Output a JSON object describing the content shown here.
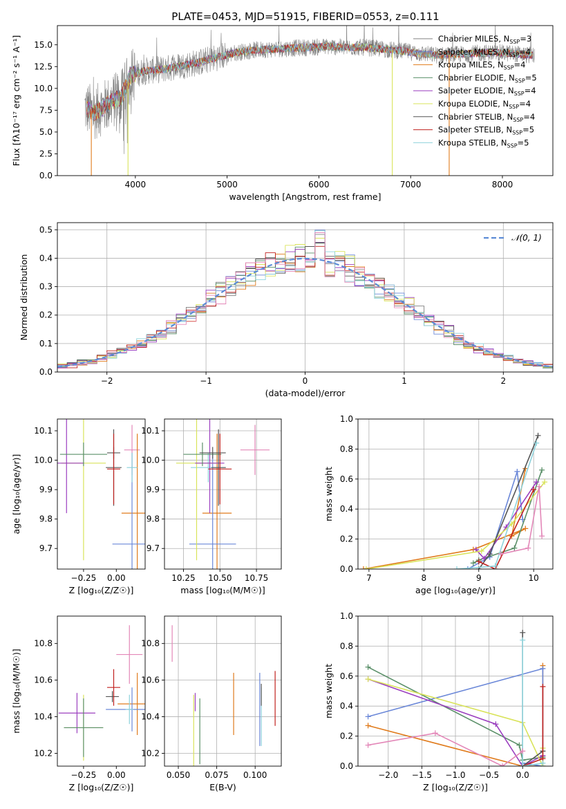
{
  "figure": {
    "title": "PLATE=0453, MJD=51915, FIBERID=0553, z=0.111"
  },
  "palette": {
    "Chabrier MILES": "#6a87d8",
    "Salpeter MILES": "#e8901f",
    "Kroupa MILES": "#e07b1c",
    "Chabrier ELODIE": "#5a8f68",
    "Salpeter ELODIE": "#9b3fbf",
    "Kroupa ELODIE": "#d9e35a",
    "Chabrier STELIB": "#555555",
    "Salpeter STELIB": "#c0201e",
    "Kroupa STELIB": "#8ed3dc",
    "Pink": "#e387b8",
    "Gray": "#808080",
    "Dashed": "#5b8bd6"
  },
  "chart_data": [
    {
      "id": "spectrum",
      "type": "line",
      "xlabel": "wavelength [Angstrom, rest frame]",
      "ylabel": "Flux [fλ10⁻¹⁷ erg cm⁻² s⁻¹ A⁻¹]",
      "xlim": [
        3150,
        8550
      ],
      "ylim": [
        0,
        17.2
      ],
      "xticks": [
        4000,
        5000,
        6000,
        7000,
        8000
      ],
      "yticks": [
        0.0,
        2.5,
        5.0,
        7.5,
        10.0,
        12.5,
        15.0
      ],
      "grid": false,
      "legend_position": "top-right",
      "legend": [
        {
          "label": "Chabrier MILES, N",
          "sub": "SSP",
          "suffix": "=3",
          "color": "#808080"
        },
        {
          "label": "Salpeter MILES, N",
          "sub": "SSP",
          "suffix": "=4",
          "color": "#6a87d8"
        },
        {
          "label": "Kroupa MILES, N",
          "sub": "SSP",
          "suffix": "=4",
          "color": "#e07b1c"
        },
        {
          "label": "Chabrier ELODIE, N",
          "sub": "SSP",
          "suffix": "=5",
          "color": "#5a8f68"
        },
        {
          "label": "Salpeter ELODIE, N",
          "sub": "SSP",
          "suffix": "=4",
          "color": "#9b3fbf"
        },
        {
          "label": "Kroupa ELODIE, N",
          "sub": "SSP",
          "suffix": "=4",
          "color": "#d9e35a"
        },
        {
          "label": "Chabrier STELIB, N",
          "sub": "SSP",
          "suffix": "=4",
          "color": "#555555"
        },
        {
          "label": "Salpeter STELIB, N",
          "sub": "SSP",
          "suffix": "=5",
          "color": "#c0201e"
        },
        {
          "label": "Kroupa STELIB, N",
          "sub": "SSP",
          "suffix": "=5",
          "color": "#8ed3dc"
        }
      ],
      "continuum": [
        [
          3450,
          7.8
        ],
        [
          3550,
          7.2
        ],
        [
          3650,
          7.8
        ],
        [
          3750,
          8.5
        ],
        [
          3850,
          9.0
        ],
        [
          3950,
          11.5
        ],
        [
          4100,
          12.0
        ],
        [
          4300,
          12.2
        ],
        [
          4500,
          12.6
        ],
        [
          4700,
          13.0
        ],
        [
          4900,
          13.6
        ],
        [
          5100,
          14.1
        ],
        [
          5300,
          14.4
        ],
        [
          5500,
          14.5
        ],
        [
          5700,
          14.6
        ],
        [
          5900,
          14.7
        ],
        [
          6100,
          14.8
        ],
        [
          6300,
          14.7
        ],
        [
          6500,
          14.7
        ],
        [
          6700,
          14.5
        ],
        [
          6900,
          14.3
        ],
        [
          7100,
          14.0
        ],
        [
          7300,
          13.8
        ],
        [
          7500,
          13.9
        ],
        [
          7700,
          14.0
        ],
        [
          7900,
          14.1
        ],
        [
          8100,
          14.0
        ],
        [
          8300,
          13.8
        ]
      ],
      "observed_range": [
        3450,
        8350
      ],
      "model_dropouts": [
        {
          "x": 3520,
          "color": "#e07b1c",
          "model": "Kroupa MILES"
        },
        {
          "x": 3920,
          "color": "#d9e35a",
          "model": "Kroupa ELODIE"
        },
        {
          "x": 6800,
          "color": "#d9e35a",
          "model": "Kroupa ELODIE"
        },
        {
          "x": 7420,
          "color": "#e07b1c",
          "model": "Kroupa MILES"
        }
      ]
    },
    {
      "id": "residuals",
      "type": "step",
      "xlabel": "(data-model)/error",
      "ylabel": "Normed distribution",
      "xlim": [
        -2.5,
        2.5
      ],
      "ylim": [
        0,
        0.525
      ],
      "xticks": [
        -2,
        -1,
        0,
        1,
        2
      ],
      "yticks": [
        0.0,
        0.1,
        0.2,
        0.3,
        0.4,
        0.5
      ],
      "grid": true,
      "legend_position": "top-right",
      "legend": [
        {
          "label": "𝒩(0, 1)",
          "style": "dashed",
          "color": "#5b8bd6"
        }
      ],
      "bin_width": 0.1,
      "series_colors": [
        "#808080",
        "#6a87d8",
        "#e07b1c",
        "#5a8f68",
        "#9b3fbf",
        "#d9e35a",
        "#555555",
        "#c0201e",
        "#8ed3dc",
        "#e387b8"
      ]
    },
    {
      "id": "age-vs-Z",
      "type": "errorbar",
      "xlabel": "Z [log₁₀(Z/Z☉)]",
      "ylabel": "age  [log₁₀(age/yr)]",
      "xlim": [
        -0.45,
        0.22
      ],
      "ylim": [
        9.63,
        10.14
      ],
      "xticks": [
        -0.25,
        0.0
      ],
      "xticklabels": [
        "−0.25",
        "0.00"
      ],
      "yticks": [
        9.7,
        9.8,
        9.9,
        10.0,
        10.1
      ],
      "grid": false,
      "points": [
        {
          "x": 0.12,
          "y": 10.035,
          "xerr": 0.06,
          "yerr": 0.085,
          "color": "#e387b8"
        },
        {
          "x": 0.16,
          "y": 9.82,
          "xerr": 0.12,
          "yerr": 0.27,
          "color": "#e07b1c"
        },
        {
          "x": 0.12,
          "y": 9.715,
          "xerr": 0.15,
          "yerr": 0.31,
          "color": "#6a87d8"
        },
        {
          "x": 0.12,
          "y": 9.975,
          "xerr": 0.04,
          "yerr": 0.05,
          "color": "#8ed3dc"
        },
        {
          "x": -0.25,
          "y": 9.99,
          "xerr": 0.17,
          "yerr": 0.33,
          "color": "#d9e35a"
        },
        {
          "x": -0.38,
          "y": 9.99,
          "xerr": 0.13,
          "yerr": 0.17,
          "color": "#9b3fbf"
        },
        {
          "x": -0.25,
          "y": 10.02,
          "xerr": 0.18,
          "yerr": 0.04,
          "color": "#5a8f68"
        },
        {
          "x": -0.02,
          "y": 10.025,
          "xerr": 0.05,
          "yerr": 0.02,
          "color": "#555555"
        },
        {
          "x": -0.02,
          "y": 9.975,
          "xerr": 0.06,
          "yerr": 0.13,
          "color": "#555555"
        },
        {
          "x": -0.02,
          "y": 9.97,
          "xerr": 0.05,
          "yerr": 0.12,
          "color": "#c0201e"
        }
      ]
    },
    {
      "id": "age-vs-mass",
      "type": "errorbar",
      "xlabel": "mass [log₁₀(M/M☉)]",
      "ylabel": "",
      "xlim": [
        10.12,
        10.92
      ],
      "ylim": [
        9.63,
        10.14
      ],
      "xticks": [
        10.25,
        10.5,
        10.75
      ],
      "xticklabels": [
        "10.25",
        "10.50",
        "10.75"
      ],
      "yticks": [
        9.7,
        9.8,
        9.9,
        10.0,
        10.1
      ],
      "grid": true,
      "points": [
        {
          "x": 10.74,
          "y": 10.035,
          "xerr": 0.1,
          "yerr": 0.085,
          "color": "#e387b8"
        },
        {
          "x": 10.48,
          "y": 9.82,
          "xerr": 0.1,
          "yerr": 0.27,
          "color": "#e07b1c"
        },
        {
          "x": 10.45,
          "y": 9.715,
          "xerr": 0.16,
          "yerr": 0.31,
          "color": "#6a87d8"
        },
        {
          "x": 10.42,
          "y": 9.975,
          "xerr": 0.12,
          "yerr": 0.05,
          "color": "#8ed3dc"
        },
        {
          "x": 10.34,
          "y": 9.99,
          "xerr": 0.14,
          "yerr": 0.33,
          "color": "#d9e35a"
        },
        {
          "x": 10.43,
          "y": 9.99,
          "xerr": 0.1,
          "yerr": 0.17,
          "color": "#9b3fbf"
        },
        {
          "x": 10.38,
          "y": 10.02,
          "xerr": 0.13,
          "yerr": 0.04,
          "color": "#5a8f68"
        },
        {
          "x": 10.45,
          "y": 10.025,
          "xerr": 0.09,
          "yerr": 0.02,
          "color": "#555555"
        },
        {
          "x": 10.49,
          "y": 9.975,
          "xerr": 0.05,
          "yerr": 0.13,
          "color": "#555555"
        },
        {
          "x": 10.5,
          "y": 9.97,
          "xerr": 0.08,
          "yerr": 0.12,
          "color": "#c0201e"
        }
      ]
    },
    {
      "id": "massweight-vs-age",
      "type": "line",
      "xlabel": "age  [log₁₀(age/yr)]",
      "ylabel": "mass weight",
      "xlim": [
        6.8,
        10.35
      ],
      "ylim": [
        0,
        1
      ],
      "xticks": [
        7,
        8,
        9,
        10
      ],
      "yticks": [
        0.0,
        0.2,
        0.4,
        0.6,
        0.8,
        1.0
      ],
      "grid": true,
      "series": [
        {
          "color": "#e07b1c",
          "x": [
            6.9,
            8.9,
            9.85,
            9.6,
            9.85
          ],
          "y": [
            0.0,
            0.13,
            0.27,
            0.22,
            0.67
          ]
        },
        {
          "color": "#6a87d8",
          "x": [
            8.8,
            9.2,
            9.7,
            9.8
          ],
          "y": [
            0.0,
            0.08,
            0.65,
            0.33
          ]
        },
        {
          "color": "#5a8f68",
          "x": [
            8.9,
            9.0,
            9.65,
            10.15
          ],
          "y": [
            0.04,
            0.06,
            0.14,
            0.66
          ]
        },
        {
          "color": "#9b3fbf",
          "x": [
            8.95,
            9.1,
            9.5,
            10.05
          ],
          "y": [
            0.13,
            0.07,
            0.28,
            0.58
          ]
        },
        {
          "color": "#d9e35a",
          "x": [
            6.95,
            9.05,
            9.6,
            10.2
          ],
          "y": [
            0.0,
            0.12,
            0.3,
            0.58
          ]
        },
        {
          "color": "#555555",
          "x": [
            9.0,
            9.2,
            10.08
          ],
          "y": [
            0.0,
            0.1,
            0.89
          ]
        },
        {
          "color": "#c0201e",
          "x": [
            9.0,
            9.3,
            10.0
          ],
          "y": [
            0.05,
            0.0,
            0.53
          ]
        },
        {
          "color": "#8ed3dc",
          "x": [
            8.6,
            9.3,
            10.05
          ],
          "y": [
            0.0,
            0.02,
            0.84
          ]
        },
        {
          "color": "#e387b8",
          "x": [
            9.4,
            9.9,
            10.1,
            10.15
          ],
          "y": [
            0.1,
            0.14,
            0.55,
            0.22
          ]
        }
      ]
    },
    {
      "id": "mass-vs-Z",
      "type": "errorbar",
      "xlabel": "Z [log₁₀(Z/Z☉)]",
      "ylabel": "mass [log₁₀(M/M☉)]",
      "xlim": [
        -0.45,
        0.22
      ],
      "ylim": [
        10.13,
        10.95
      ],
      "xticks": [
        -0.25,
        0.0
      ],
      "xticklabels": [
        "−0.25",
        "0.00"
      ],
      "yticks": [
        10.2,
        10.4,
        10.6,
        10.8
      ],
      "grid": false,
      "points": [
        {
          "x": 0.1,
          "y": 10.74,
          "xerr": 0.1,
          "yerr": 0.16,
          "color": "#e387b8"
        },
        {
          "x": 0.16,
          "y": 10.47,
          "xerr": 0.15,
          "yerr": 0.17,
          "color": "#e07b1c"
        },
        {
          "x": 0.12,
          "y": 10.44,
          "xerr": 0.2,
          "yerr": 0.12,
          "color": "#6a87d8"
        },
        {
          "x": 0.1,
          "y": 10.44,
          "xerr": 0.03,
          "yerr": 0.08,
          "color": "#8ed3dc"
        },
        {
          "x": -0.25,
          "y": 10.34,
          "xerr": 0.15,
          "yerr": 0.18,
          "color": "#d9e35a"
        },
        {
          "x": -0.3,
          "y": 10.42,
          "xerr": 0.14,
          "yerr": 0.11,
          "color": "#9b3fbf"
        },
        {
          "x": -0.25,
          "y": 10.34,
          "xerr": 0.15,
          "yerr": 0.16,
          "color": "#5a8f68"
        },
        {
          "x": -0.03,
          "y": 10.51,
          "xerr": 0.05,
          "yerr": 0.03,
          "color": "#555555"
        },
        {
          "x": -0.02,
          "y": 10.56,
          "xerr": 0.05,
          "yerr": 0.1,
          "color": "#c0201e"
        }
      ]
    },
    {
      "id": "mass-vs-EBV",
      "type": "errorbar",
      "xlabel": "E(B-V)",
      "ylabel": "",
      "xlim": [
        0.041,
        0.117
      ],
      "ylim": [
        10.13,
        10.95
      ],
      "xticks": [
        0.05,
        0.075,
        0.1
      ],
      "xticklabels": [
        "0.050",
        "0.075",
        "0.100"
      ],
      "yticks": [
        10.2,
        10.4,
        10.6,
        10.8
      ],
      "grid": true,
      "points": [
        {
          "x": 0.046,
          "y": 10.8,
          "xerr": 0,
          "yerr": 0.1,
          "color": "#e387b8"
        },
        {
          "x": 0.086,
          "y": 10.47,
          "xerr": 0,
          "yerr": 0.17,
          "color": "#e07b1c"
        },
        {
          "x": 0.103,
          "y": 10.44,
          "xerr": 0,
          "yerr": 0.2,
          "color": "#6a87d8"
        },
        {
          "x": 0.104,
          "y": 10.4,
          "xerr": 0,
          "yerr": 0.16,
          "color": "#8ed3dc"
        },
        {
          "x": 0.06,
          "y": 10.32,
          "xerr": 0,
          "yerr": 0.2,
          "color": "#d9e35a"
        },
        {
          "x": 0.061,
          "y": 10.48,
          "xerr": 0,
          "yerr": 0.05,
          "color": "#9b3fbf"
        },
        {
          "x": 0.064,
          "y": 10.32,
          "xerr": 0,
          "yerr": 0.18,
          "color": "#5a8f68"
        },
        {
          "x": 0.104,
          "y": 10.52,
          "xerr": 0,
          "yerr": 0.06,
          "color": "#555555"
        },
        {
          "x": 0.113,
          "y": 10.5,
          "xerr": 0,
          "yerr": 0.15,
          "color": "#c0201e"
        }
      ]
    },
    {
      "id": "massweight-vs-Z",
      "type": "line",
      "xlabel": "Z [log₁₀(Z/Z☉)]",
      "ylabel": "mass weight",
      "xlim": [
        -2.45,
        0.45
      ],
      "ylim": [
        0,
        1
      ],
      "xticks": [
        -2.0,
        -1.5,
        -1.0,
        -0.5,
        0.0
      ],
      "xticklabels": [
        "−2.0",
        "−1.5",
        "−1.0",
        "−0.5",
        "0.0"
      ],
      "yticks": [
        0.0,
        0.2,
        0.4,
        0.6,
        0.8,
        1.0
      ],
      "grid": true,
      "series": [
        {
          "color": "#e07b1c",
          "x": [
            -2.3,
            0.0,
            0.3,
            0.3
          ],
          "y": [
            0.27,
            0.0,
            0.0,
            0.67
          ]
        },
        {
          "color": "#6a87d8",
          "x": [
            -2.3,
            0.3,
            0.3,
            0.0
          ],
          "y": [
            0.33,
            0.65,
            0.0,
            0.02
          ]
        },
        {
          "color": "#5a8f68",
          "x": [
            -2.3,
            -0.05,
            0.0,
            0.3
          ],
          "y": [
            0.66,
            0.14,
            0.04,
            0.06
          ]
        },
        {
          "color": "#9b3fbf",
          "x": [
            -2.3,
            -0.4,
            0.0,
            0.3
          ],
          "y": [
            0.58,
            0.28,
            0.0,
            0.07
          ]
        },
        {
          "color": "#d9e35a",
          "x": [
            -2.3,
            0.0,
            0.3,
            0.3
          ],
          "y": [
            0.58,
            0.29,
            0.0,
            0.12
          ]
        },
        {
          "color": "#555555",
          "x": [
            0.0,
            0.0,
            0.3
          ],
          "y": [
            0.89,
            0.0,
            0.1
          ]
        },
        {
          "color": "#c0201e",
          "x": [
            0.0,
            0.3,
            0.3
          ],
          "y": [
            0.0,
            0.05,
            0.53
          ]
        },
        {
          "color": "#8ed3dc",
          "x": [
            0.0,
            0.0,
            0.3
          ],
          "y": [
            0.84,
            0.0,
            0.02
          ]
        },
        {
          "color": "#e387b8",
          "x": [
            -2.3,
            -1.3,
            -0.3,
            0.0
          ],
          "y": [
            0.14,
            0.22,
            0.0,
            0.1
          ]
        }
      ]
    }
  ]
}
